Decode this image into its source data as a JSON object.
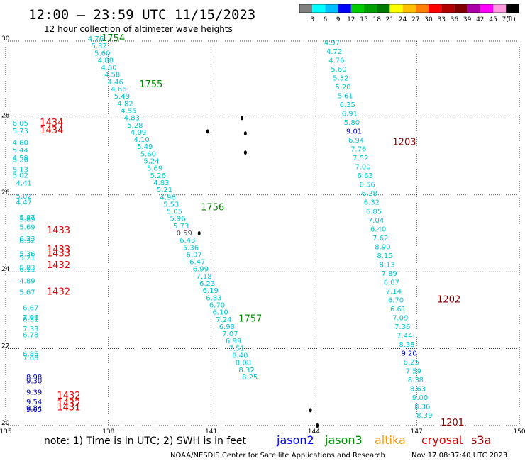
{
  "title": "12:00 — 23:59 UTC 11/15/2023",
  "subtitle": "12 hour collection of altimeter wave heights",
  "legend": {
    "unit": "(ft)",
    "colors": [
      "#808080",
      "#00ffff",
      "#00bfff",
      "#0000ff",
      "#00cc00",
      "#00a000",
      "#007a00",
      "#ffff00",
      "#ffc000",
      "#ff8000",
      "#ff0000",
      "#b00000",
      "#800000",
      "#aa00aa",
      "#ff00ff",
      "#ff99dd",
      "#000000"
    ],
    "labels": [
      "3",
      "6",
      "9",
      "12",
      "15",
      "18",
      "21",
      "24",
      "27",
      "30",
      "33",
      "36",
      "39",
      "42",
      "45",
      "70"
    ]
  },
  "axes": {
    "lon_ticks": [
      "135",
      "138",
      "141",
      "144",
      "147",
      "150"
    ],
    "lat_ticks": [
      "30",
      "28",
      "26",
      "24",
      "22",
      "20"
    ]
  },
  "footer": {
    "note": "note: 1) Time is in UTC; 2) SWH is in feet",
    "satellites": [
      {
        "name": "jason2",
        "color": "#0000ff"
      },
      {
        "name": "jason3",
        "color": "#009000"
      },
      {
        "name": "altika",
        "color": "#ff9900"
      },
      {
        "name": "cryosat",
        "color": "#dd0000"
      },
      {
        "name": "s3a",
        "color": "#990000"
      }
    ],
    "credit": "NOAA/NESDIS Center for Satellite Applications and Research",
    "timestamp": "Nov 17 08:37:40 UTC 2023"
  },
  "colors": {
    "cyan": "#00c8d2",
    "blue": "#0000cc",
    "green": "#008800",
    "red": "#dd0000",
    "darkred": "#880000",
    "gray": "#555555"
  },
  "chart_data": {
    "type": "map",
    "xlim": [
      135,
      150
    ],
    "ylim": [
      20,
      30
    ],
    "track_labels": [
      {
        "text": "1754",
        "lon": 137.8,
        "lat": 30.0,
        "color": "green"
      },
      {
        "text": "1755",
        "lon": 138.9,
        "lat": 28.8,
        "color": "green"
      },
      {
        "text": "1756",
        "lon": 140.7,
        "lat": 25.6,
        "color": "green"
      },
      {
        "text": "1757",
        "lon": 141.8,
        "lat": 22.7,
        "color": "green"
      },
      {
        "text": "1203",
        "lon": 146.3,
        "lat": 27.3,
        "color": "darkred"
      },
      {
        "text": "1202",
        "lon": 147.6,
        "lat": 23.2,
        "color": "darkred"
      },
      {
        "text": "1201",
        "lon": 147.7,
        "lat": 20.0,
        "color": "darkred"
      },
      {
        "text": "1434",
        "lon": 136.0,
        "lat": 27.8,
        "color": "red"
      },
      {
        "text": "1434",
        "lon": 136.0,
        "lat": 27.6,
        "color": "red"
      },
      {
        "text": "1433",
        "lon": 136.2,
        "lat": 25.0,
        "color": "red"
      },
      {
        "text": "1433",
        "lon": 136.2,
        "lat": 24.5,
        "color": "red"
      },
      {
        "text": "1433",
        "lon": 136.2,
        "lat": 24.4,
        "color": "red"
      },
      {
        "text": "1432",
        "lon": 136.2,
        "lat": 24.1,
        "color": "red"
      },
      {
        "text": "1432",
        "lon": 136.2,
        "lat": 23.4,
        "color": "red"
      },
      {
        "text": "1432",
        "lon": 136.5,
        "lat": 20.7,
        "color": "red"
      },
      {
        "text": "1432",
        "lon": 136.5,
        "lat": 20.5,
        "color": "red"
      },
      {
        "text": "1431",
        "lon": 136.5,
        "lat": 20.4,
        "color": "red"
      }
    ],
    "tracks": [
      {
        "name": "1754-1757",
        "start": [
          137.4,
          30.0
        ],
        "end": [
          141.9,
          21.2
        ],
        "values": [
          "4.76",
          "5.32",
          "5.60",
          "4.88",
          "4.60",
          "4.58",
          "4.46",
          "4.66",
          "5.49",
          "4.82",
          "4.55",
          "4.83",
          "5.28",
          "4.09",
          "4.10",
          "5.49",
          "5.60",
          "5.24",
          "5.69",
          "5.26",
          "4.83",
          "5.21",
          "4.98",
          "5.53",
          "5.05",
          "5.96",
          "5.73",
          "0.59",
          "6.43",
          "5.36",
          "6.07",
          "6.47",
          "6.99",
          "7.18",
          "6.23",
          "6.19",
          "6.83",
          "6.70",
          "6.10",
          "7.24",
          "6.98",
          "7.07",
          "6.99",
          "7.51",
          "8.40",
          "8.08",
          "8.32",
          "8.25"
        ],
        "colors": [
          "c",
          "c",
          "c",
          "c",
          "c",
          "c",
          "c",
          "c",
          "c",
          "c",
          "c",
          "c",
          "c",
          "c",
          "c",
          "c",
          "c",
          "c",
          "c",
          "c",
          "c",
          "c",
          "c",
          "c",
          "c",
          "c",
          "c",
          "g",
          "c",
          "c",
          "c",
          "c",
          "c",
          "c",
          "c",
          "c",
          "c",
          "c",
          "c",
          "c",
          "c",
          "c",
          "c",
          "c",
          "c",
          "c",
          "c",
          "c"
        ]
      },
      {
        "name": "1201-1203",
        "start": [
          144.3,
          29.9
        ],
        "end": [
          147.0,
          20.2
        ],
        "values": [
          "4.97",
          "4.72",
          "4.76",
          "5.60",
          "5.32",
          "5.20",
          "5.61",
          "6.35",
          "6.91",
          "5.80",
          "9.01",
          "6.94",
          "7.76",
          "7.52",
          "7.00",
          "6.63",
          "6.56",
          "6.28",
          "6.32",
          "6.85",
          "7.04",
          "6.40",
          "7.62",
          "8.90",
          "8.15",
          "8.13",
          "7.89",
          "6.87",
          "7.14",
          "6.70",
          "6.61",
          "7.09",
          "7.36",
          "7.44",
          "8.38",
          "9.20",
          "8.25",
          "7.59",
          "8.38",
          "8.63",
          "9.00",
          "8.36",
          "8.39"
        ],
        "colors": [
          "c",
          "c",
          "c",
          "c",
          "c",
          "c",
          "c",
          "c",
          "c",
          "c",
          "b",
          "c",
          "c",
          "c",
          "c",
          "c",
          "c",
          "c",
          "c",
          "c",
          "c",
          "c",
          "c",
          "c",
          "c",
          "c",
          "c",
          "c",
          "c",
          "c",
          "c",
          "c",
          "c",
          "c",
          "c",
          "b",
          "c",
          "c",
          "c",
          "c",
          "c",
          "c",
          "c"
        ]
      },
      {
        "name": "1431-1434",
        "values": [
          {
            "t": "6.05",
            "lon": 135.2,
            "lat": 27.8,
            "c": "c"
          },
          {
            "t": "5.73",
            "lon": 135.2,
            "lat": 27.6,
            "c": "c"
          },
          {
            "t": "4.60",
            "lon": 135.2,
            "lat": 27.3,
            "c": "c"
          },
          {
            "t": "5.44",
            "lon": 135.2,
            "lat": 27.1,
            "c": "c"
          },
          {
            "t": "4.59",
            "lon": 135.2,
            "lat": 26.9,
            "c": "c"
          },
          {
            "t": "5.26",
            "lon": 135.2,
            "lat": 26.85,
            "c": "c"
          },
          {
            "t": "5.13",
            "lon": 135.2,
            "lat": 26.6,
            "c": "c"
          },
          {
            "t": "5.02",
            "lon": 135.2,
            "lat": 26.45,
            "c": "c"
          },
          {
            "t": "4.41",
            "lon": 135.3,
            "lat": 26.25,
            "c": "c"
          },
          {
            "t": "5.02",
            "lon": 135.3,
            "lat": 25.9,
            "c": "c"
          },
          {
            "t": "4.47",
            "lon": 135.3,
            "lat": 25.75,
            "c": "c"
          },
          {
            "t": "5.89",
            "lon": 135.4,
            "lat": 25.3,
            "c": "c"
          },
          {
            "t": "5.87",
            "lon": 135.4,
            "lat": 25.35,
            "c": "c"
          },
          {
            "t": "5.69",
            "lon": 135.4,
            "lat": 25.1,
            "c": "c"
          },
          {
            "t": "6.23",
            "lon": 135.4,
            "lat": 24.8,
            "c": "c"
          },
          {
            "t": "6.32",
            "lon": 135.4,
            "lat": 24.75,
            "c": "c"
          },
          {
            "t": "5.36",
            "lon": 135.4,
            "lat": 24.4,
            "c": "c"
          },
          {
            "t": "5.21",
            "lon": 135.4,
            "lat": 24.3,
            "c": "c"
          },
          {
            "t": "5.83",
            "lon": 135.4,
            "lat": 24.05,
            "c": "c"
          },
          {
            "t": "6.11",
            "lon": 135.4,
            "lat": 24.0,
            "c": "c"
          },
          {
            "t": "4.89",
            "lon": 135.4,
            "lat": 23.7,
            "c": "c"
          },
          {
            "t": "5.67",
            "lon": 135.4,
            "lat": 23.4,
            "c": "c"
          },
          {
            "t": "6.67",
            "lon": 135.5,
            "lat": 23.0,
            "c": "c"
          },
          {
            "t": "7.06",
            "lon": 135.5,
            "lat": 22.75,
            "c": "c"
          },
          {
            "t": "6.31",
            "lon": 135.5,
            "lat": 22.7,
            "c": "c"
          },
          {
            "t": "7.33",
            "lon": 135.5,
            "lat": 22.45,
            "c": "c"
          },
          {
            "t": "6.78",
            "lon": 135.5,
            "lat": 22.3,
            "c": "c"
          },
          {
            "t": "6.85",
            "lon": 135.5,
            "lat": 21.8,
            "c": "c"
          },
          {
            "t": "7.68",
            "lon": 135.5,
            "lat": 21.7,
            "c": "c"
          },
          {
            "t": "8.98",
            "lon": 135.6,
            "lat": 21.2,
            "c": "b"
          },
          {
            "t": "9.30",
            "lon": 135.6,
            "lat": 21.1,
            "c": "b"
          },
          {
            "t": "9.39",
            "lon": 135.6,
            "lat": 20.8,
            "c": "b"
          },
          {
            "t": "9.54",
            "lon": 135.6,
            "lat": 20.55,
            "c": "b"
          },
          {
            "t": "9.84",
            "lon": 135.6,
            "lat": 20.4,
            "c": "b"
          },
          {
            "t": "9.65",
            "lon": 135.6,
            "lat": 20.35,
            "c": "b"
          }
        ]
      }
    ],
    "islands": [
      [
        141.9,
        28.0
      ],
      [
        142.0,
        27.6
      ],
      [
        142.0,
        27.1
      ],
      [
        140.9,
        27.65
      ],
      [
        140.65,
        25.0
      ],
      [
        143.9,
        20.4
      ],
      [
        144.1,
        20.0
      ]
    ]
  }
}
